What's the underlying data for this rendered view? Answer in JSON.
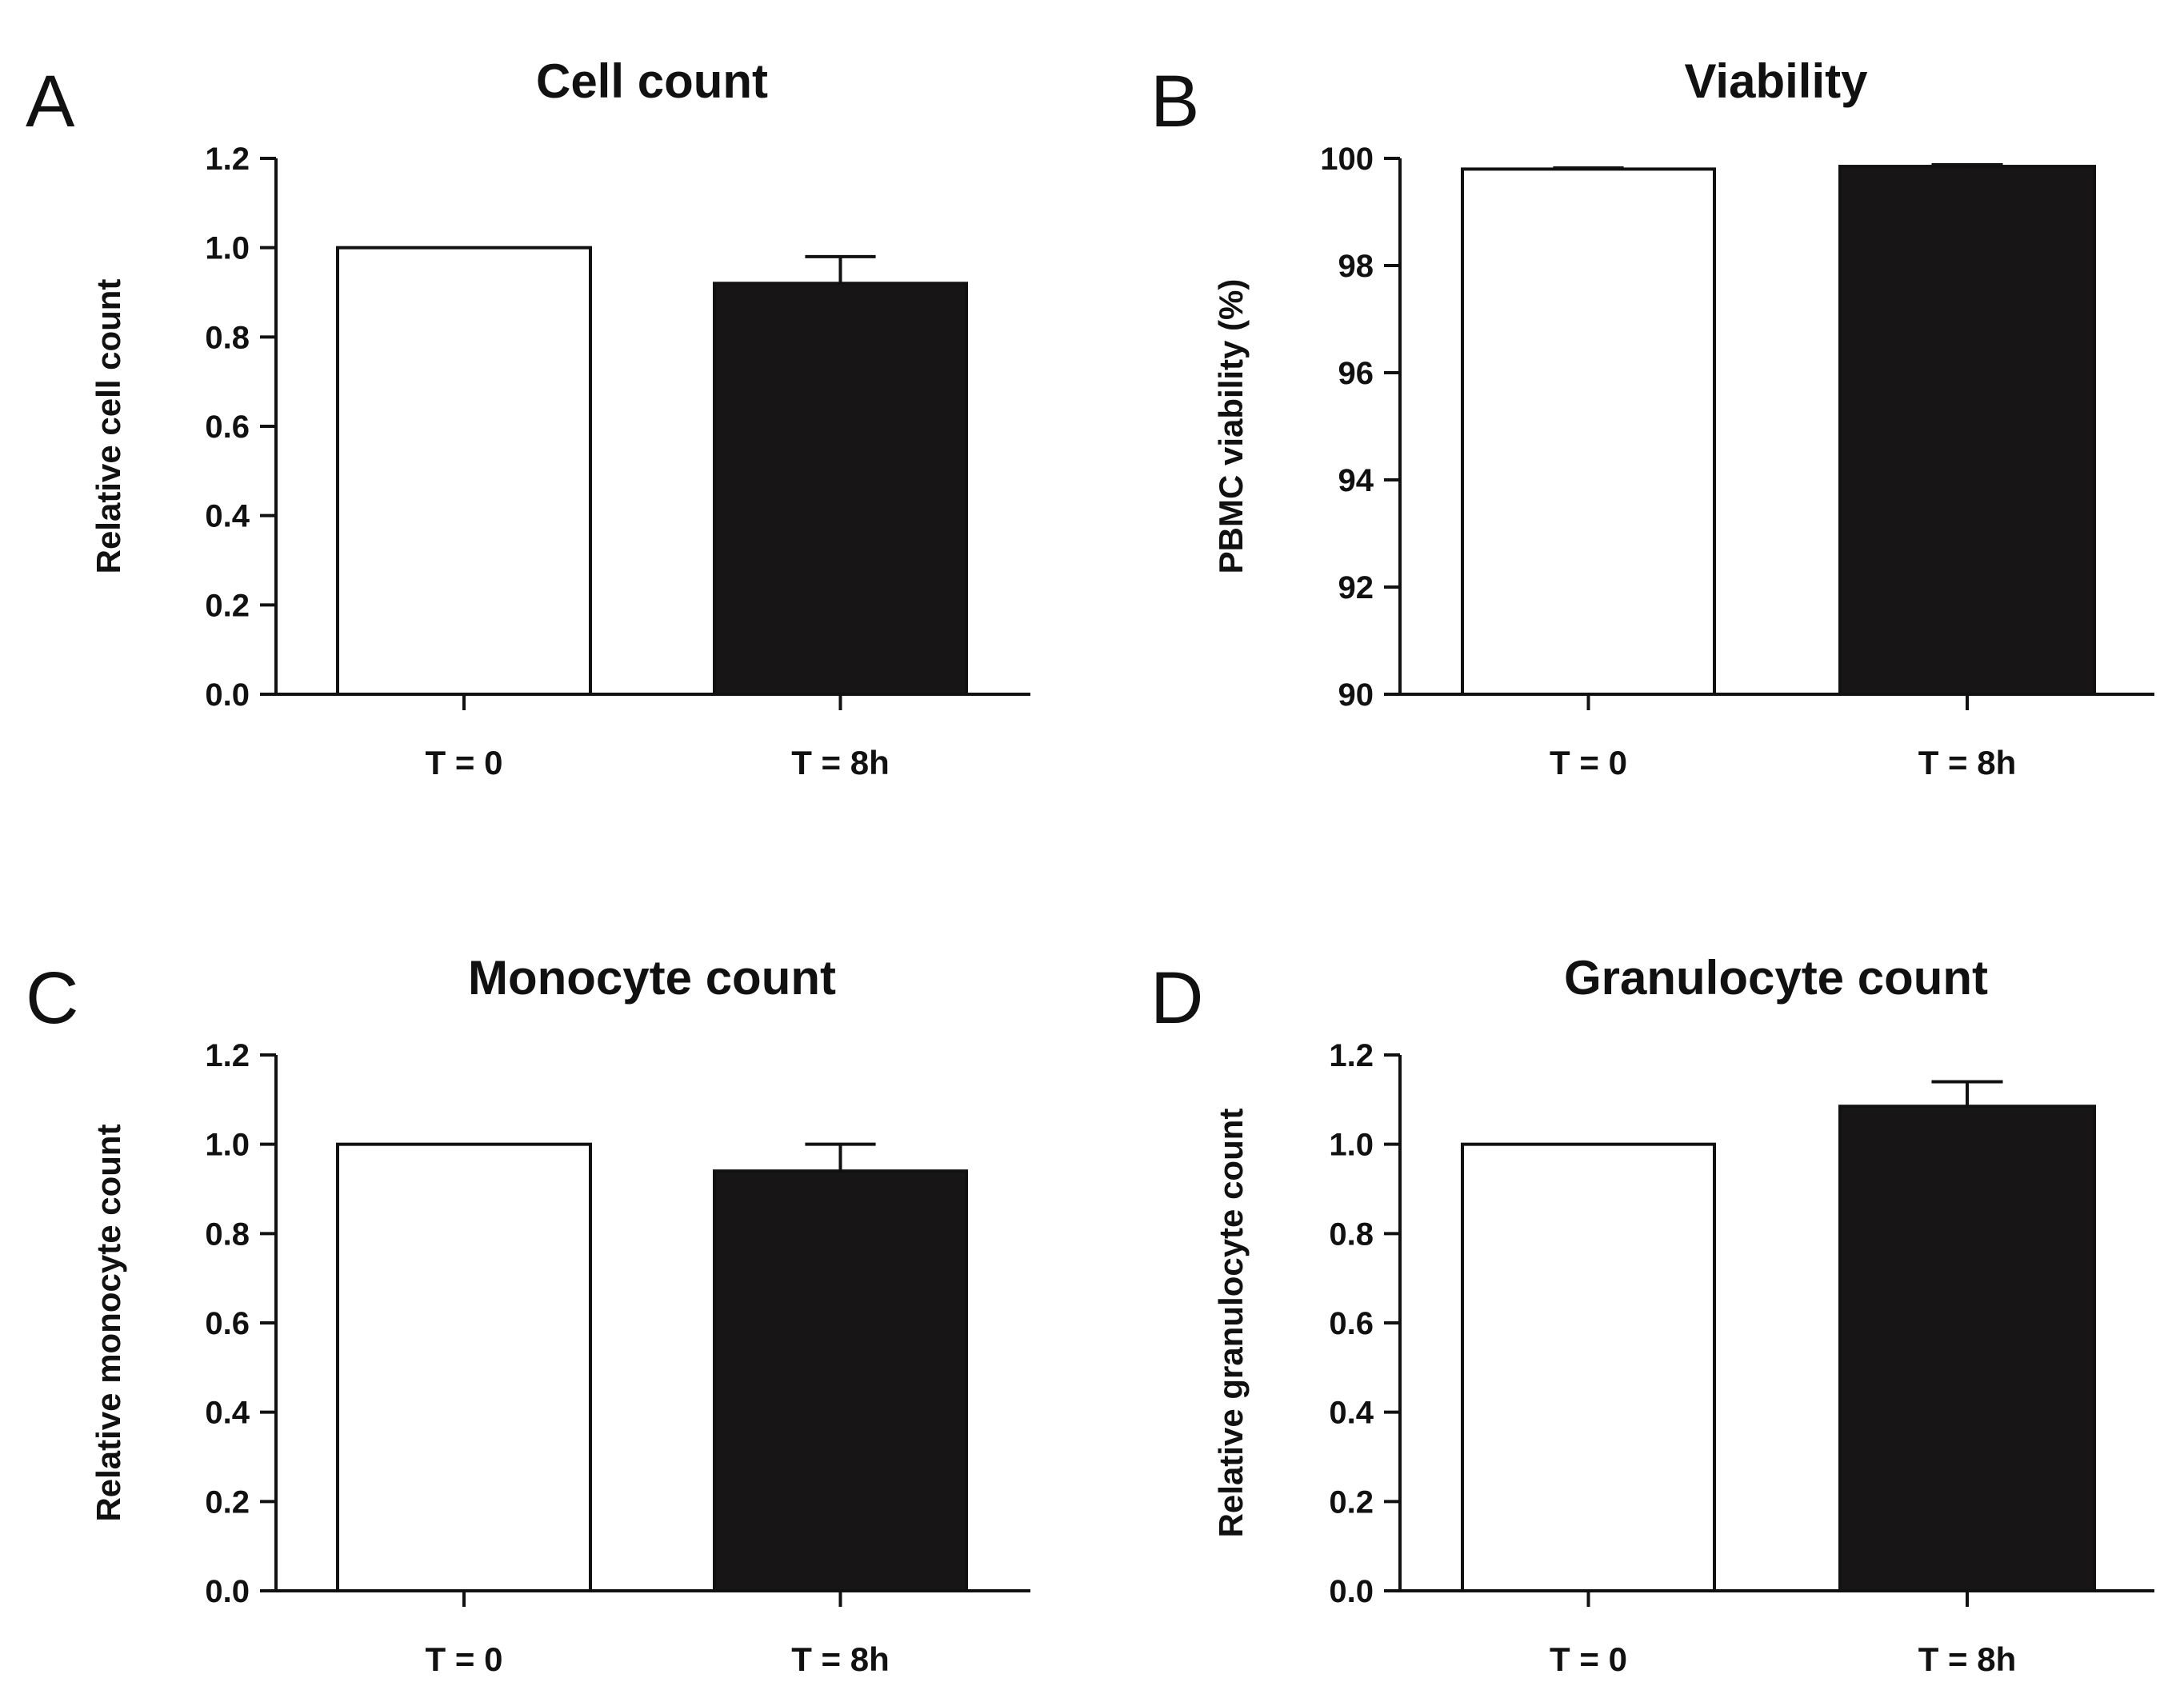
{
  "chart_data": [
    {
      "panel": "A",
      "type": "bar",
      "title": "Cell count",
      "xlabel": "",
      "ylabel": "Relative cell count",
      "ylim": [
        0,
        1.2
      ],
      "yticks": [
        "0.0",
        "0.2",
        "0.4",
        "0.6",
        "0.8",
        "1.0",
        "1.2"
      ],
      "categories": [
        "T = 0",
        "T = 8h"
      ],
      "values": [
        1.0,
        0.92
      ],
      "errors": [
        0,
        0.06
      ],
      "colors": [
        "#ffffff",
        "#181516"
      ]
    },
    {
      "panel": "B",
      "type": "bar",
      "title": "Viability",
      "xlabel": "",
      "ylabel": "PBMC viability (%)",
      "ylim": [
        90,
        100
      ],
      "yticks": [
        "90",
        "92",
        "94",
        "96",
        "98",
        "100"
      ],
      "categories": [
        "T = 0",
        "T = 8h"
      ],
      "values": [
        99.8,
        99.85
      ],
      "errors": [
        0.02,
        0.03
      ],
      "colors": [
        "#ffffff",
        "#181516"
      ]
    },
    {
      "panel": "C",
      "type": "bar",
      "title": "Monocyte count",
      "xlabel": "",
      "ylabel": "Relative monocyte count",
      "ylim": [
        0,
        1.2
      ],
      "yticks": [
        "0.0",
        "0.2",
        "0.4",
        "0.6",
        "0.8",
        "1.0",
        "1.2"
      ],
      "categories": [
        "T = 0",
        "T = 8h"
      ],
      "values": [
        1.0,
        0.94
      ],
      "errors": [
        0,
        0.06
      ],
      "colors": [
        "#ffffff",
        "#181516"
      ]
    },
    {
      "panel": "D",
      "type": "bar",
      "title": "Granulocyte count",
      "xlabel": "",
      "ylabel": "Relative granulocyte count",
      "ylim": [
        0,
        1.2
      ],
      "yticks": [
        "0.0",
        "0.2",
        "0.4",
        "0.6",
        "0.8",
        "1.0",
        "1.2"
      ],
      "categories": [
        "T = 0",
        "T = 8h"
      ],
      "values": [
        1.0,
        1.085
      ],
      "errors": [
        0,
        0.055
      ],
      "colors": [
        "#ffffff",
        "#181516"
      ]
    }
  ]
}
